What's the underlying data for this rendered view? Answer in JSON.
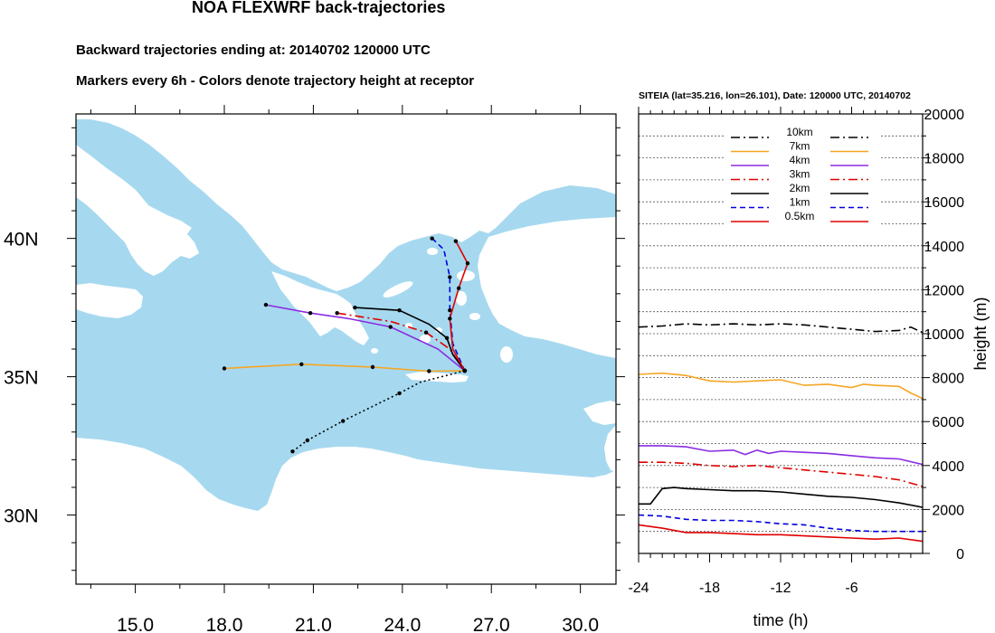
{
  "header": {
    "title": "NOA FLEXWRF back-trajectories",
    "subtitle1": "Backward trajectories ending at: 20140702  120000 UTC",
    "subtitle2": "Markers every 6h - Colors denote trajectory height at receptor"
  },
  "colors": {
    "sea": "#a6d9ef",
    "land": "#ffffff",
    "10km": "#000000",
    "7km": "#f5a623",
    "4km": "#8a2be2",
    "3km": "#e00000",
    "2km": "#000000",
    "1km": "#0000e0",
    "0.5km": "#e00000"
  },
  "chart_data": [
    {
      "type": "map-trajectory",
      "xlim": [
        13.0,
        31.2
      ],
      "ylim": [
        27.5,
        44.5
      ],
      "x_ticks": [
        15.0,
        18.0,
        21.0,
        24.0,
        27.0,
        30.0
      ],
      "x_tick_labels": [
        "15.0",
        "18.0",
        "21.0",
        "24.0",
        "27.0",
        "30.0"
      ],
      "y_ticks": [
        30,
        35,
        40
      ],
      "y_tick_labels": [
        "30N",
        "35N",
        "40N"
      ],
      "receptor": {
        "lon": 26.101,
        "lat": 35.216
      },
      "series": [
        {
          "name": "7km",
          "style": "solid",
          "points": [
            [
              18.0,
              35.3
            ],
            [
              20.6,
              35.45
            ],
            [
              23.0,
              35.35
            ],
            [
              24.9,
              35.2
            ],
            [
              26.1,
              35.216
            ]
          ],
          "markers": [
            [
              18.0,
              35.3
            ],
            [
              20.6,
              35.45
            ],
            [
              23.0,
              35.35
            ],
            [
              24.9,
              35.2
            ]
          ]
        },
        {
          "name": "10km",
          "style": "dotted",
          "points": [
            [
              20.3,
              32.3
            ],
            [
              20.8,
              32.7
            ],
            [
              22.0,
              33.4
            ],
            [
              23.9,
              34.4
            ],
            [
              24.6,
              34.8
            ],
            [
              26.1,
              35.216
            ]
          ],
          "markers": [
            [
              20.3,
              32.3
            ],
            [
              20.8,
              32.7
            ],
            [
              22.0,
              33.4
            ],
            [
              23.9,
              34.4
            ]
          ]
        },
        {
          "name": "4km",
          "style": "solid",
          "points": [
            [
              19.4,
              37.6
            ],
            [
              20.9,
              37.3
            ],
            [
              22.2,
              37.1
            ],
            [
              23.6,
              36.8
            ],
            [
              25.2,
              36.0
            ],
            [
              26.1,
              35.216
            ]
          ],
          "markers": [
            [
              19.4,
              37.6
            ],
            [
              20.9,
              37.3
            ],
            [
              23.6,
              36.8
            ]
          ]
        },
        {
          "name": "3km",
          "style": "dashdot",
          "points": [
            [
              21.8,
              37.3
            ],
            [
              23.6,
              37.0
            ],
            [
              24.8,
              36.6
            ],
            [
              25.6,
              36.0
            ],
            [
              26.1,
              35.216
            ]
          ],
          "markers": [
            [
              21.8,
              37.3
            ],
            [
              24.8,
              36.6
            ]
          ]
        },
        {
          "name": "2km",
          "style": "solid",
          "points": [
            [
              22.4,
              37.5
            ],
            [
              23.9,
              37.4
            ],
            [
              24.9,
              36.9
            ],
            [
              25.5,
              36.4
            ],
            [
              25.7,
              35.8
            ],
            [
              26.1,
              35.216
            ]
          ],
          "markers": [
            [
              22.4,
              37.5
            ],
            [
              23.9,
              37.4
            ],
            [
              25.5,
              36.4
            ]
          ]
        },
        {
          "name": "1km",
          "style": "dashed",
          "points": [
            [
              25.0,
              40.0
            ],
            [
              25.4,
              39.6
            ],
            [
              25.6,
              38.6
            ],
            [
              25.6,
              37.4
            ],
            [
              25.7,
              36.2
            ],
            [
              26.1,
              35.216
            ]
          ],
          "markers": [
            [
              25.0,
              40.0
            ],
            [
              25.6,
              38.6
            ],
            [
              25.6,
              37.4
            ]
          ]
        },
        {
          "name": "0.5km",
          "style": "solid",
          "points": [
            [
              25.8,
              39.9
            ],
            [
              26.2,
              39.1
            ],
            [
              25.9,
              38.2
            ],
            [
              25.6,
              37.1
            ],
            [
              25.7,
              36.0
            ],
            [
              26.1,
              35.216
            ]
          ],
          "markers": [
            [
              25.8,
              39.9
            ],
            [
              26.2,
              39.1
            ],
            [
              25.9,
              38.2
            ],
            [
              25.6,
              37.1
            ]
          ]
        }
      ]
    },
    {
      "type": "line",
      "title": "SITEIA (lat=35.216,  lon=26.101), Date: 120000 UTC, 20140702",
      "xlabel": "time (h)",
      "ylabel": "height (m)",
      "xlim": [
        -24,
        0
      ],
      "ylim": [
        0,
        20000
      ],
      "x_ticks": [
        -24,
        -18,
        -12,
        -6
      ],
      "x_tick_labels": [
        "-24",
        "-18",
        "-12",
        "-6"
      ],
      "y_ticks": [
        0,
        2000,
        4000,
        6000,
        8000,
        10000,
        12000,
        14000,
        16000,
        18000,
        20000
      ],
      "y_tick_labels": [
        "0",
        "2000",
        "4000",
        "6000",
        "8000",
        "10000",
        "12000",
        "14000",
        "16000",
        "18000",
        "20000"
      ],
      "legend": [
        "10km",
        "7km",
        "4km",
        "3km",
        "2km",
        "1km",
        "0.5km"
      ],
      "series": [
        {
          "name": "10km",
          "style": "dashdot",
          "x": [
            -24,
            -22,
            -20,
            -18,
            -16,
            -14,
            -12,
            -10,
            -8,
            -6,
            -4,
            -2,
            -1,
            0
          ],
          "y": [
            10300,
            10350,
            10450,
            10400,
            10450,
            10400,
            10450,
            10400,
            10300,
            10200,
            10100,
            10150,
            10300,
            10050
          ]
        },
        {
          "name": "7km",
          "style": "solid",
          "x": [
            -24,
            -22,
            -20,
            -18,
            -16,
            -14,
            -12,
            -10,
            -8,
            -6,
            -5,
            -4,
            -2,
            -1,
            0
          ],
          "y": [
            8150,
            8200,
            8100,
            7850,
            7800,
            7850,
            7900,
            7650,
            7700,
            7550,
            7700,
            7650,
            7600,
            7300,
            7050
          ]
        },
        {
          "name": "4km",
          "style": "solid",
          "x": [
            -24,
            -22,
            -20,
            -18,
            -16,
            -15,
            -14,
            -13,
            -12,
            -10,
            -8,
            -6,
            -4,
            -2,
            0
          ],
          "y": [
            4900,
            4900,
            4850,
            4650,
            4700,
            4500,
            4700,
            4550,
            4650,
            4600,
            4550,
            4450,
            4350,
            4300,
            4050
          ]
        },
        {
          "name": "3km",
          "style": "dashdot",
          "x": [
            -24,
            -22,
            -20,
            -18,
            -16,
            -14,
            -12,
            -10,
            -8,
            -6,
            -4,
            -2,
            0
          ],
          "y": [
            4150,
            4150,
            4100,
            4000,
            3950,
            4000,
            3900,
            3800,
            3700,
            3600,
            3500,
            3350,
            3050
          ]
        },
        {
          "name": "2km",
          "style": "solid",
          "x": [
            -24,
            -23,
            -22,
            -21,
            -20,
            -18,
            -16,
            -14,
            -12,
            -10,
            -8,
            -6,
            -4,
            -2,
            0
          ],
          "y": [
            2250,
            2250,
            2950,
            3000,
            2950,
            2900,
            2850,
            2850,
            2800,
            2700,
            2600,
            2550,
            2450,
            2300,
            2100
          ]
        },
        {
          "name": "1km",
          "style": "dashed",
          "x": [
            -24,
            -22,
            -20,
            -18,
            -16,
            -14,
            -12,
            -10,
            -8,
            -6,
            -4,
            -2,
            0
          ],
          "y": [
            1750,
            1700,
            1550,
            1500,
            1500,
            1450,
            1350,
            1300,
            1150,
            1050,
            1000,
            1000,
            1000
          ]
        },
        {
          "name": "0.5km",
          "style": "solid",
          "x": [
            -24,
            -22,
            -20,
            -18,
            -16,
            -14,
            -12,
            -10,
            -8,
            -6,
            -4,
            -2,
            0
          ],
          "y": [
            1300,
            1150,
            950,
            950,
            900,
            850,
            850,
            800,
            750,
            700,
            650,
            700,
            550
          ]
        }
      ]
    }
  ]
}
